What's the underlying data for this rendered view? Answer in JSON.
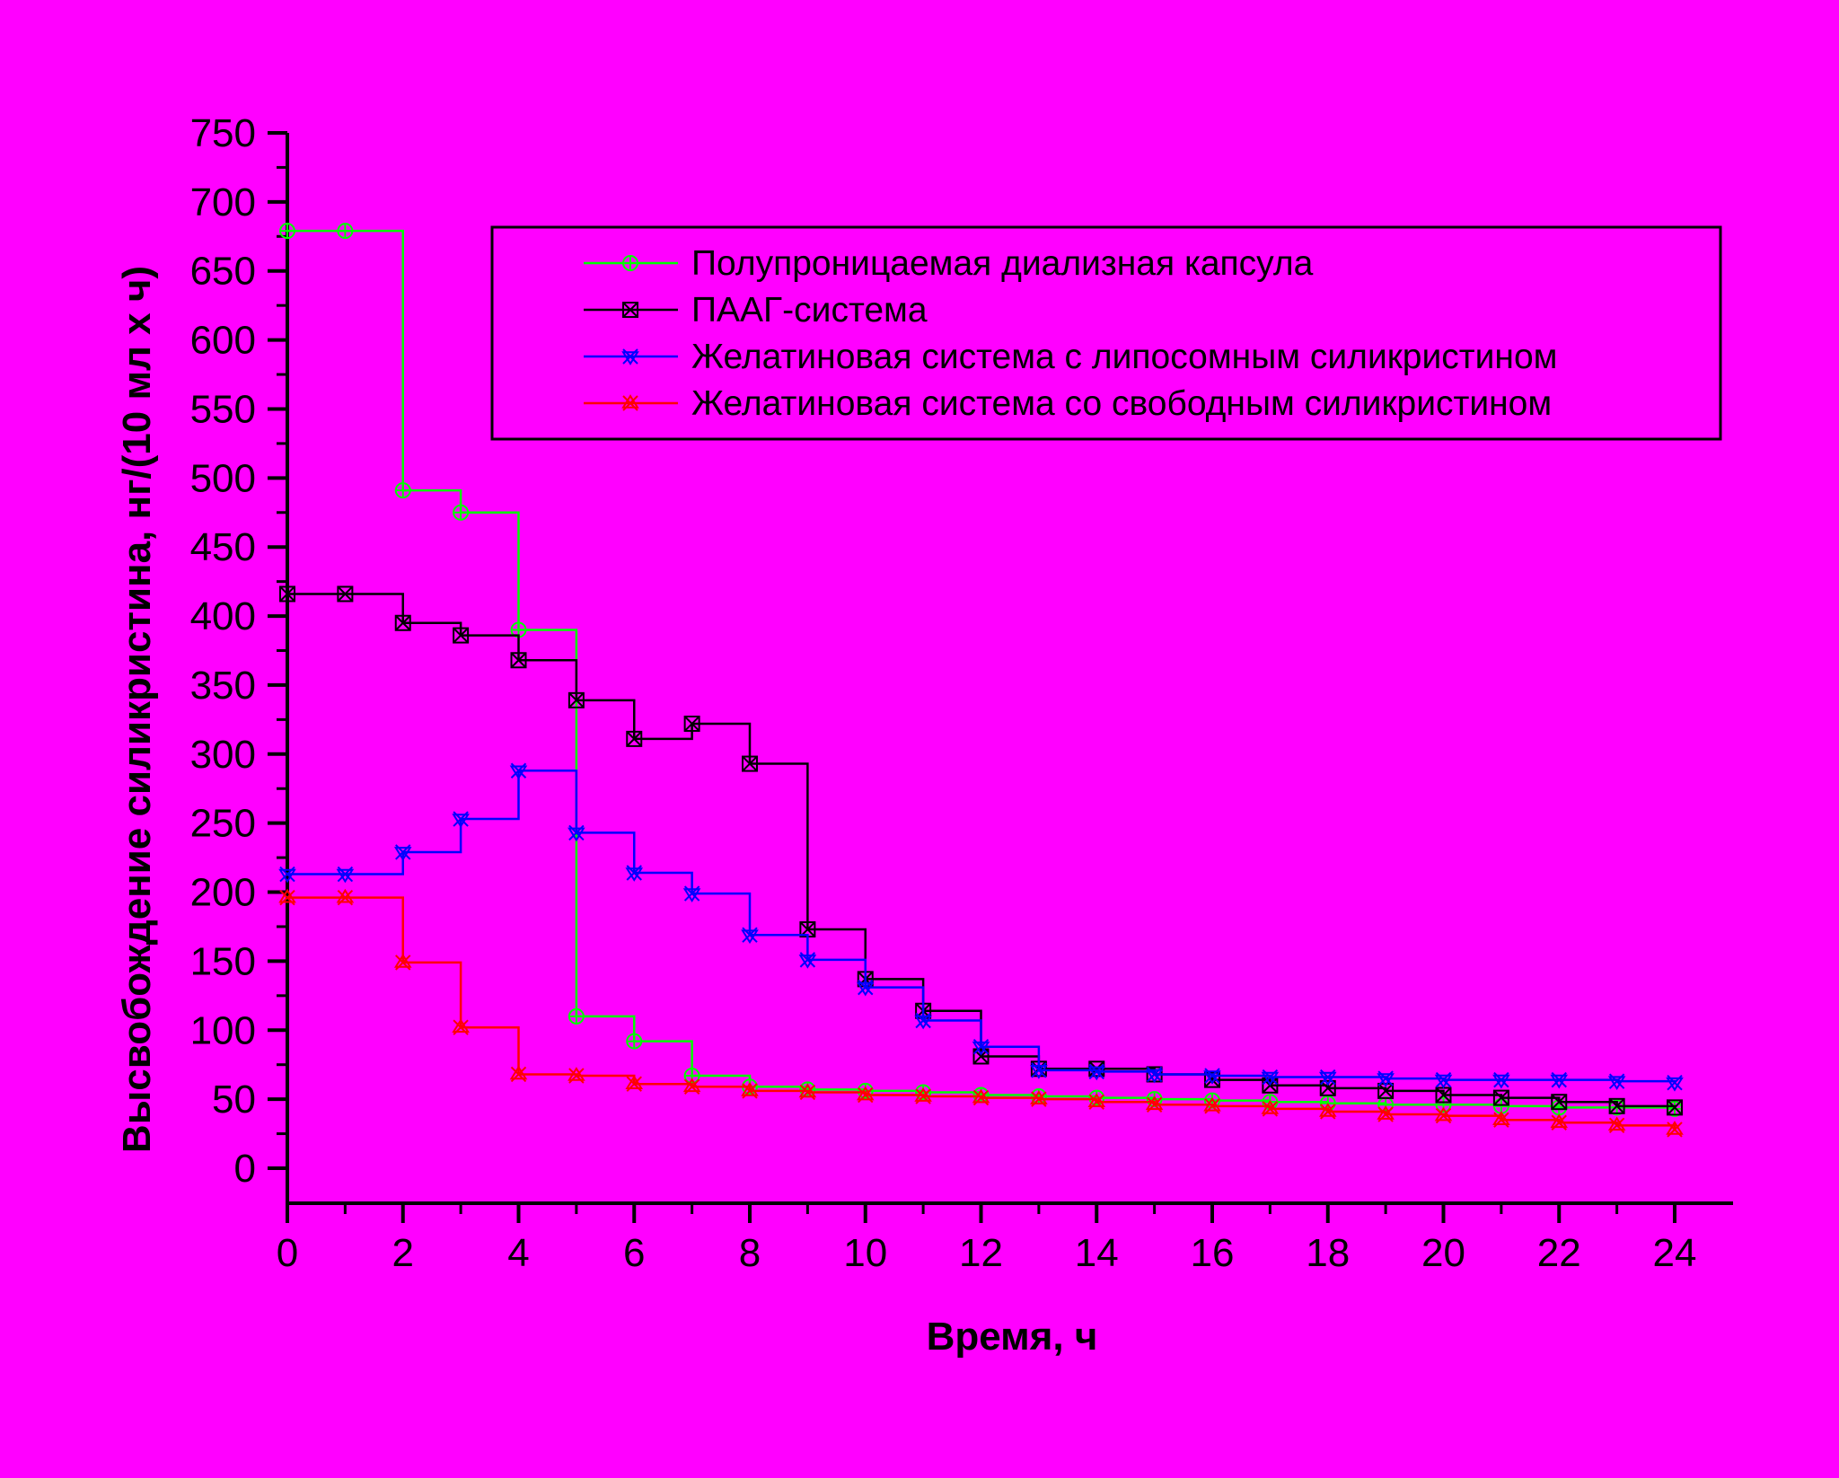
{
  "chart_data": {
    "type": "line",
    "step": true,
    "xlabel": "Время, ч",
    "ylabel": "Высвобождение силикристина, нг/(10 мл х ч)",
    "xlim": [
      0,
      24
    ],
    "ylim": [
      0,
      750
    ],
    "xticks": [
      "0",
      "2",
      "4",
      "6",
      "8",
      "10",
      "12",
      "14",
      "16",
      "18",
      "20",
      "22",
      "24"
    ],
    "yticks": [
      "0",
      "50",
      "100",
      "150",
      "200",
      "250",
      "300",
      "350",
      "400",
      "450",
      "500",
      "550",
      "600",
      "650",
      "700",
      "750"
    ],
    "grid": false,
    "legend_position": "top-right",
    "x": [
      0,
      1,
      2,
      3,
      4,
      5,
      6,
      7,
      8,
      9,
      10,
      11,
      12,
      13,
      14,
      15,
      16,
      17,
      18,
      19,
      20,
      21,
      22,
      23,
      24
    ],
    "series": [
      {
        "name": "Полупроницаемая диализная капсула",
        "color": "#00ff00",
        "marker": "circle",
        "values": [
          679,
          679,
          491,
          475,
          390,
          110,
          92,
          67,
          59,
          57,
          56,
          55,
          53,
          52,
          51,
          50,
          49,
          48,
          47,
          46,
          46,
          45,
          44,
          44,
          43
        ]
      },
      {
        "name": "ПААГ-система",
        "color": "#000000",
        "marker": "square-x",
        "values": [
          416,
          416,
          395,
          386,
          368,
          339,
          311,
          322,
          293,
          173,
          137,
          114,
          81,
          72,
          72,
          68,
          64,
          60,
          58,
          56,
          53,
          51,
          48,
          45,
          44
        ]
      },
      {
        "name": "Желатиновая система с липосомным силикристином",
        "color": "#0000ff",
        "marker": "star-down",
        "values": [
          213,
          213,
          229,
          253,
          288,
          243,
          214,
          199,
          169,
          151,
          131,
          107,
          88,
          71,
          70,
          68,
          67,
          66,
          66,
          65,
          64,
          64,
          64,
          63,
          62
        ]
      },
      {
        "name": "Желатиновая система со свободным силикристином",
        "color": "#ff0000",
        "marker": "star-up",
        "values": [
          196,
          196,
          149,
          102,
          68,
          67,
          61,
          59,
          56,
          55,
          53,
          52,
          51,
          50,
          48,
          46,
          45,
          43,
          41,
          39,
          38,
          35,
          33,
          31,
          28
        ]
      }
    ]
  }
}
